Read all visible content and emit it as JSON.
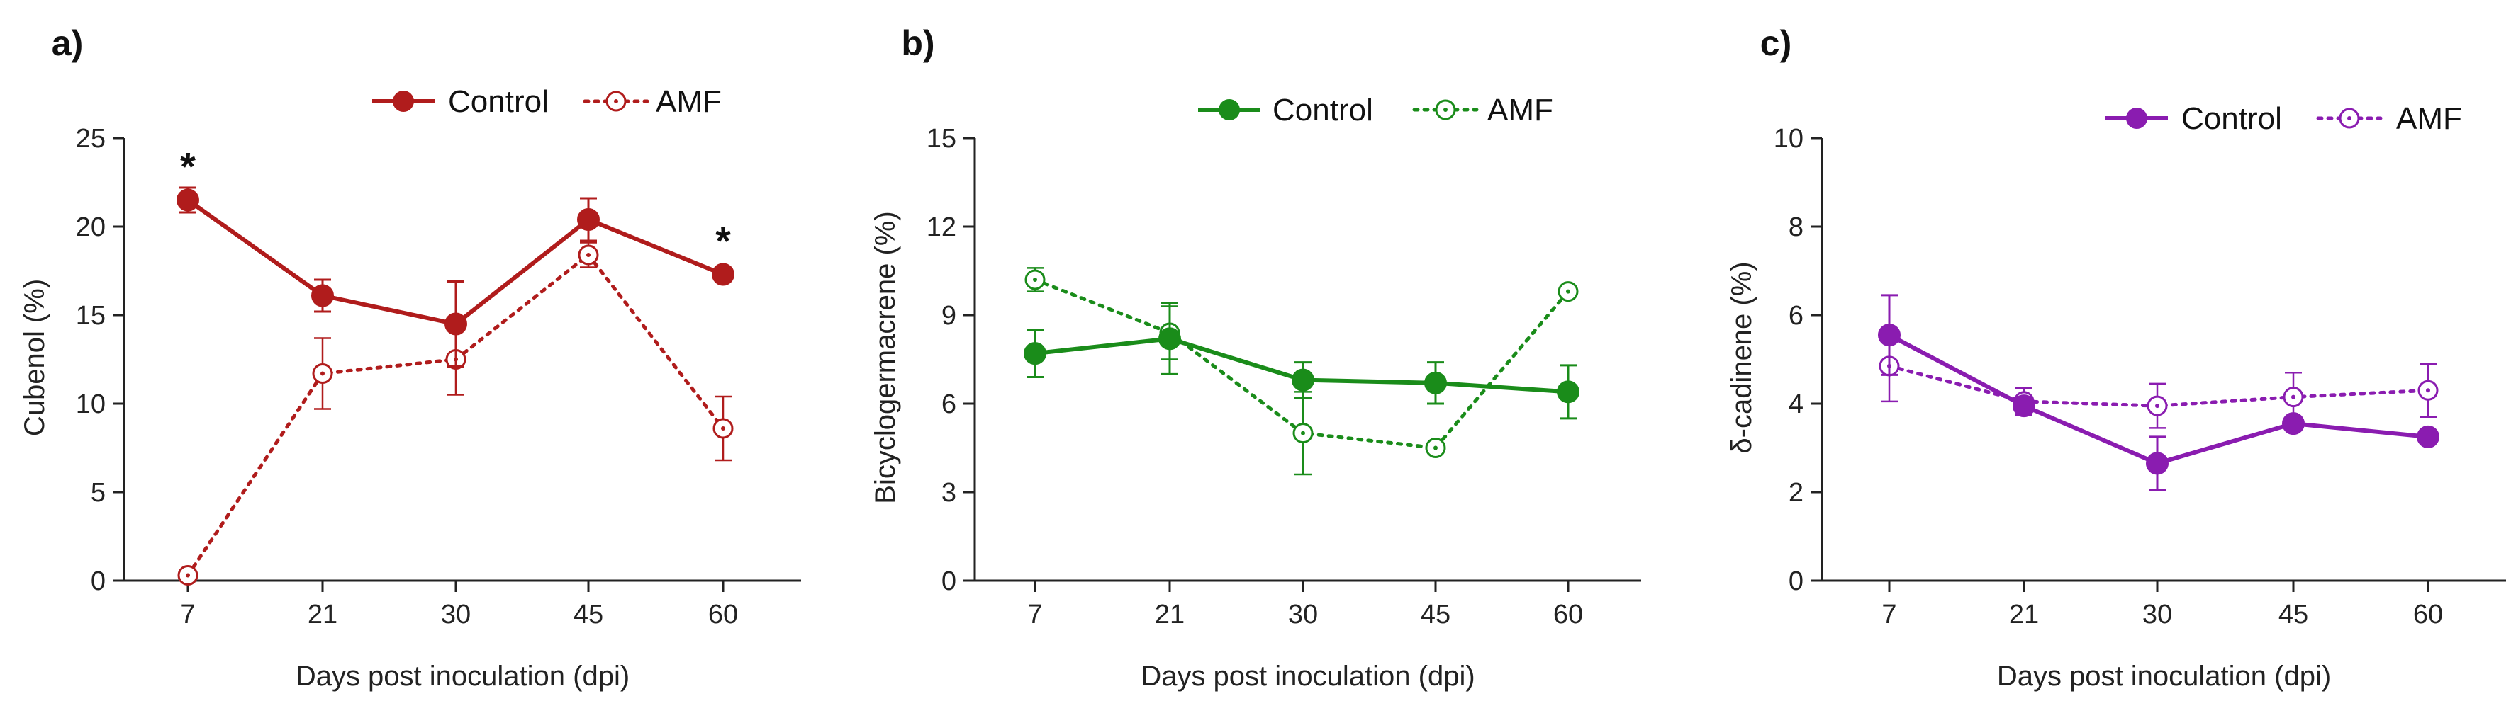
{
  "chart_data": [
    {
      "type": "line",
      "panel_label": "a)",
      "ylabel": "Cubenol (%)",
      "xlabel": "Days post inoculation (dpi)",
      "categories": [
        "7",
        "21",
        "30",
        "45",
        "60"
      ],
      "ylim": [
        0,
        25
      ],
      "yticks": [
        "0",
        "5",
        "10",
        "15",
        "20",
        "25"
      ],
      "color": "#b01c1c",
      "legend_position": "top-right",
      "series": [
        {
          "name": "Control",
          "style": "solid",
          "marker": "filled",
          "values": [
            21.5,
            16.1,
            14.5,
            20.4,
            17.3
          ],
          "errors": [
            0.7,
            0.9,
            2.4,
            1.2,
            0.3
          ]
        },
        {
          "name": "AMF",
          "style": "dotted",
          "marker": "open",
          "values": [
            0.3,
            11.7,
            12.5,
            18.4,
            8.6
          ],
          "errors": [
            0.0,
            2.0,
            2.0,
            0.7,
            1.8
          ]
        }
      ],
      "annotations": [
        {
          "text": "*",
          "index": 0,
          "value": 23.5
        },
        {
          "text": "*",
          "index": 4,
          "value": 19.3
        }
      ]
    },
    {
      "type": "line",
      "panel_label": "b)",
      "ylabel": "Bicyclogermacrene (%)",
      "xlabel": "Days post inoculation (dpi)",
      "categories": [
        "7",
        "21",
        "30",
        "45",
        "60"
      ],
      "ylim": [
        0,
        15
      ],
      "yticks": [
        "0",
        "3",
        "6",
        "9",
        "12",
        "15"
      ],
      "color": "#1a8c1a",
      "legend_position": "top-right",
      "series": [
        {
          "name": "Control",
          "style": "solid",
          "marker": "filled",
          "values": [
            7.7,
            8.2,
            6.8,
            6.7,
            6.4
          ],
          "errors": [
            0.8,
            1.2,
            0.6,
            0.7,
            0.9
          ]
        },
        {
          "name": "AMF",
          "style": "dotted",
          "marker": "open",
          "values": [
            10.2,
            8.4,
            5.0,
            4.5,
            9.8
          ],
          "errors": [
            0.4,
            0.9,
            1.4,
            0.15,
            0.15
          ]
        }
      ],
      "annotations": []
    },
    {
      "type": "line",
      "panel_label": "c)",
      "ylabel": "δ-cadinene (%)",
      "xlabel": "Days post inoculation (dpi)",
      "categories": [
        "7",
        "21",
        "30",
        "45",
        "60"
      ],
      "ylim": [
        0,
        10
      ],
      "yticks": [
        "0",
        "2",
        "4",
        "6",
        "8",
        "10"
      ],
      "color": "#8a1cb0",
      "legend_position": "top-right",
      "series": [
        {
          "name": "Control",
          "style": "solid",
          "marker": "filled",
          "values": [
            5.55,
            3.95,
            2.65,
            3.55,
            3.25
          ],
          "errors": [
            0.9,
            0.2,
            0.6,
            0.12,
            0.1
          ]
        },
        {
          "name": "AMF",
          "style": "dotted",
          "marker": "open",
          "values": [
            4.85,
            4.05,
            3.95,
            4.15,
            4.3
          ],
          "errors": [
            0.8,
            0.3,
            0.5,
            0.55,
            0.6
          ]
        }
      ],
      "annotations": []
    }
  ]
}
